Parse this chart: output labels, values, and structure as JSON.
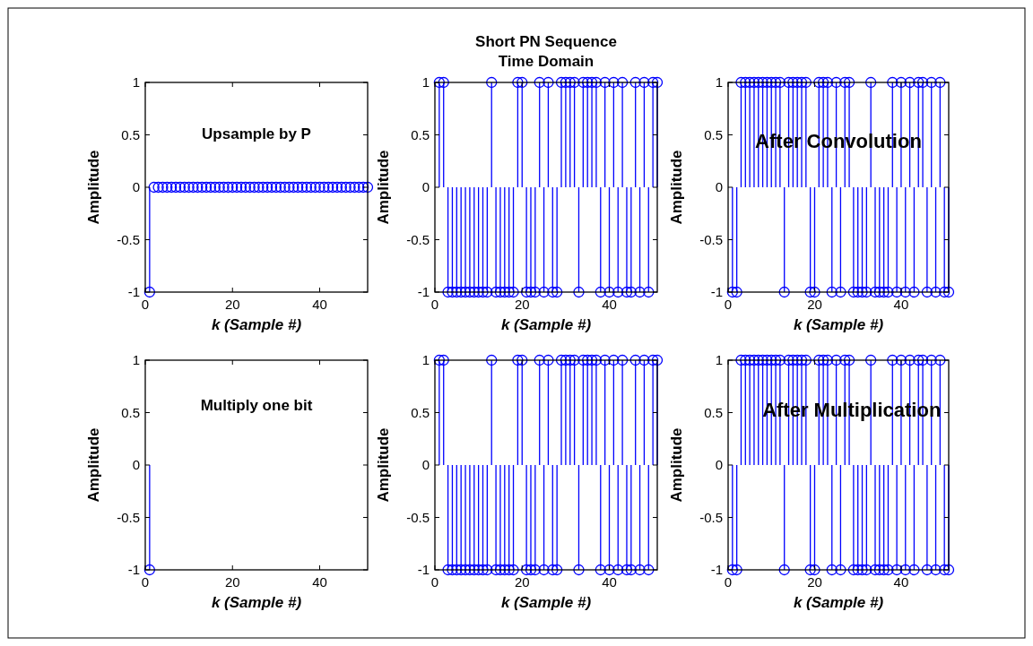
{
  "chart_data": [
    {
      "type": "lollipop",
      "annotations": [
        "Upsample by P"
      ],
      "xlabel": "k (Sample #)",
      "ylabel": "Amplitude",
      "xlim": [
        0,
        51
      ],
      "ylim": [
        -1,
        1
      ],
      "xticks": [
        0,
        20,
        40
      ],
      "yticks": [
        -1,
        -0.5,
        0,
        0.5,
        1
      ],
      "marker": "circle",
      "color": "#0000ff",
      "x": [
        1,
        2,
        3,
        4,
        5,
        6,
        7,
        8,
        9,
        10,
        11,
        12,
        13,
        14,
        15,
        16,
        17,
        18,
        19,
        20,
        21,
        22,
        23,
        24,
        25,
        26,
        27,
        28,
        29,
        30,
        31,
        32,
        33,
        34,
        35,
        36,
        37,
        38,
        39,
        40,
        41,
        42,
        43,
        44,
        45,
        46,
        47,
        48,
        49,
        50,
        51
      ],
      "values": [
        -1,
        0,
        0,
        0,
        0,
        0,
        0,
        0,
        0,
        0,
        0,
        0,
        0,
        0,
        0,
        0,
        0,
        0,
        0,
        0,
        0,
        0,
        0,
        0,
        0,
        0,
        0,
        0,
        0,
        0,
        0,
        0,
        0,
        0,
        0,
        0,
        0,
        0,
        0,
        0,
        0,
        0,
        0,
        0,
        0,
        0,
        0,
        0,
        0,
        0,
        0
      ]
    },
    {
      "type": "lollipop",
      "title": "Short PN Sequence\nTime Domain",
      "xlabel": "k (Sample #)",
      "ylabel": "Amplitude",
      "xlim": [
        0,
        51
      ],
      "ylim": [
        -1,
        1
      ],
      "xticks": [
        0,
        20,
        40
      ],
      "yticks": [
        -1,
        -0.5,
        0,
        0.5,
        1
      ],
      "marker": "circle",
      "color": "#0000ff",
      "x": [
        1,
        2,
        3,
        4,
        5,
        6,
        7,
        8,
        9,
        10,
        11,
        12,
        13,
        14,
        15,
        16,
        17,
        18,
        19,
        20,
        21,
        22,
        23,
        24,
        25,
        26,
        27,
        28,
        29,
        30,
        31,
        32,
        33,
        34,
        35,
        36,
        37,
        38,
        39,
        40,
        41,
        42,
        43,
        44,
        45,
        46,
        47,
        48,
        49,
        50,
        51
      ],
      "values": [
        1,
        1,
        -1,
        -1,
        -1,
        -1,
        -1,
        -1,
        -1,
        -1,
        -1,
        -1,
        1,
        -1,
        -1,
        -1,
        -1,
        -1,
        1,
        1,
        -1,
        -1,
        -1,
        1,
        -1,
        1,
        -1,
        -1,
        1,
        1,
        1,
        1,
        -1,
        1,
        1,
        1,
        1,
        -1,
        1,
        -1,
        1,
        -1,
        1,
        -1,
        -1,
        1,
        -1,
        1,
        -1,
        1,
        1
      ]
    },
    {
      "type": "lollipop",
      "annotations": [
        "After Convolution"
      ],
      "xlabel": "k (Sample #)",
      "ylabel": "Amplitude",
      "xlim": [
        0,
        51
      ],
      "ylim": [
        -1,
        1
      ],
      "xticks": [
        0,
        20,
        40
      ],
      "yticks": [
        -1,
        -0.5,
        0,
        0.5,
        1
      ],
      "marker": "circle",
      "color": "#0000ff",
      "x": [
        1,
        2,
        3,
        4,
        5,
        6,
        7,
        8,
        9,
        10,
        11,
        12,
        13,
        14,
        15,
        16,
        17,
        18,
        19,
        20,
        21,
        22,
        23,
        24,
        25,
        26,
        27,
        28,
        29,
        30,
        31,
        32,
        33,
        34,
        35,
        36,
        37,
        38,
        39,
        40,
        41,
        42,
        43,
        44,
        45,
        46,
        47,
        48,
        49,
        50,
        51
      ],
      "values": [
        -1,
        -1,
        1,
        1,
        1,
        1,
        1,
        1,
        1,
        1,
        1,
        1,
        -1,
        1,
        1,
        1,
        1,
        1,
        -1,
        -1,
        1,
        1,
        1,
        -1,
        1,
        -1,
        1,
        1,
        -1,
        -1,
        -1,
        -1,
        1,
        -1,
        -1,
        -1,
        -1,
        1,
        -1,
        1,
        -1,
        1,
        -1,
        1,
        1,
        -1,
        1,
        -1,
        1,
        -1,
        -1
      ]
    },
    {
      "type": "lollipop",
      "annotations": [
        "Multiply one bit"
      ],
      "xlabel": "k (Sample #)",
      "ylabel": "Amplitude",
      "xlim": [
        0,
        51
      ],
      "ylim": [
        -1,
        1
      ],
      "xticks": [
        0,
        20,
        40
      ],
      "yticks": [
        -1,
        -0.5,
        0,
        0.5,
        1
      ],
      "marker": "circle",
      "color": "#0000ff",
      "x": [
        1
      ],
      "values": [
        -1
      ]
    },
    {
      "type": "lollipop",
      "xlabel": "k (Sample #)",
      "ylabel": "Amplitude",
      "xlim": [
        0,
        51
      ],
      "ylim": [
        -1,
        1
      ],
      "xticks": [
        0,
        20,
        40
      ],
      "yticks": [
        -1,
        -0.5,
        0,
        0.5,
        1
      ],
      "marker": "circle",
      "color": "#0000ff",
      "x": [
        1,
        2,
        3,
        4,
        5,
        6,
        7,
        8,
        9,
        10,
        11,
        12,
        13,
        14,
        15,
        16,
        17,
        18,
        19,
        20,
        21,
        22,
        23,
        24,
        25,
        26,
        27,
        28,
        29,
        30,
        31,
        32,
        33,
        34,
        35,
        36,
        37,
        38,
        39,
        40,
        41,
        42,
        43,
        44,
        45,
        46,
        47,
        48,
        49,
        50,
        51
      ],
      "values": [
        1,
        1,
        -1,
        -1,
        -1,
        -1,
        -1,
        -1,
        -1,
        -1,
        -1,
        -1,
        1,
        -1,
        -1,
        -1,
        -1,
        -1,
        1,
        1,
        -1,
        -1,
        -1,
        1,
        -1,
        1,
        -1,
        -1,
        1,
        1,
        1,
        1,
        -1,
        1,
        1,
        1,
        1,
        -1,
        1,
        -1,
        1,
        -1,
        1,
        -1,
        -1,
        1,
        -1,
        1,
        -1,
        1,
        1
      ]
    },
    {
      "type": "lollipop",
      "annotations": [
        "After Multiplication"
      ],
      "xlabel": "k (Sample #)",
      "ylabel": "Amplitude",
      "xlim": [
        0,
        51
      ],
      "ylim": [
        -1,
        1
      ],
      "xticks": [
        0,
        20,
        40
      ],
      "yticks": [
        -1,
        -0.5,
        0,
        0.5,
        1
      ],
      "marker": "circle",
      "color": "#0000ff",
      "x": [
        1,
        2,
        3,
        4,
        5,
        6,
        7,
        8,
        9,
        10,
        11,
        12,
        13,
        14,
        15,
        16,
        17,
        18,
        19,
        20,
        21,
        22,
        23,
        24,
        25,
        26,
        27,
        28,
        29,
        30,
        31,
        32,
        33,
        34,
        35,
        36,
        37,
        38,
        39,
        40,
        41,
        42,
        43,
        44,
        45,
        46,
        47,
        48,
        49,
        50,
        51
      ],
      "values": [
        -1,
        -1,
        1,
        1,
        1,
        1,
        1,
        1,
        1,
        1,
        1,
        1,
        -1,
        1,
        1,
        1,
        1,
        1,
        -1,
        -1,
        1,
        1,
        1,
        -1,
        1,
        -1,
        1,
        1,
        -1,
        -1,
        -1,
        -1,
        1,
        -1,
        -1,
        -1,
        -1,
        1,
        -1,
        1,
        -1,
        1,
        -1,
        1,
        1,
        -1,
        1,
        -1,
        1,
        -1,
        -1
      ]
    }
  ]
}
